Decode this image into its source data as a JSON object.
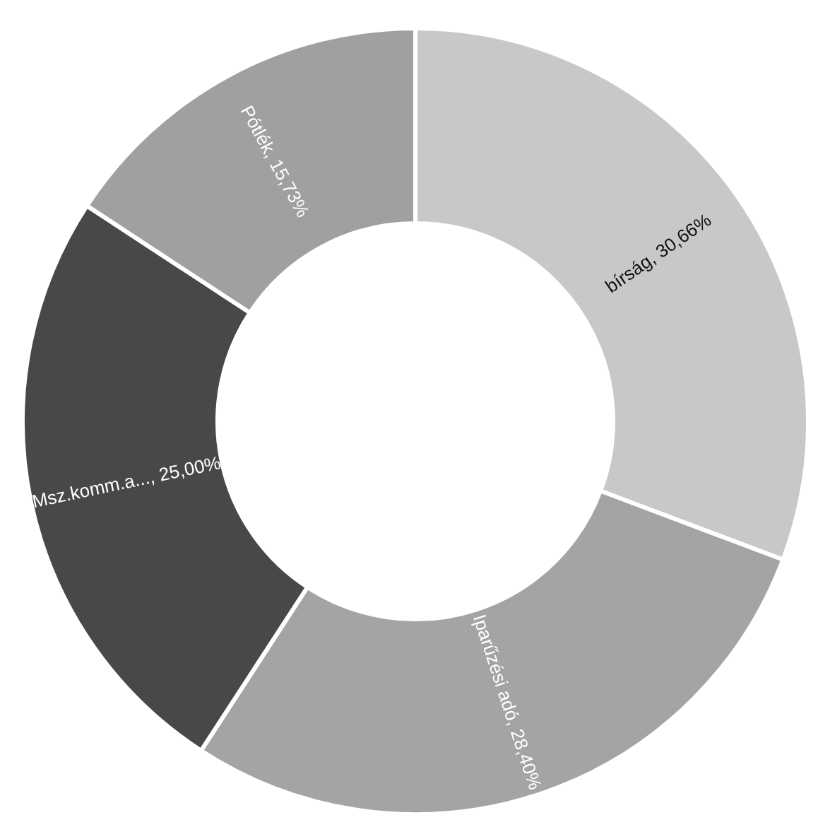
{
  "chart_data": {
    "type": "donut",
    "categories": [
      "bírság",
      "Iparűzési adó",
      "Msz.komm.a...",
      "Pótlék"
    ],
    "values": [
      30.66,
      28.4,
      25.0,
      15.73
    ],
    "value_labels": [
      "30,66%",
      "28,40%",
      "25,00%",
      "15,73%"
    ],
    "colors": [
      "#c8c8c8",
      "#a4a4a4",
      "#484848",
      "#a0a0a0"
    ],
    "legend": false
  }
}
